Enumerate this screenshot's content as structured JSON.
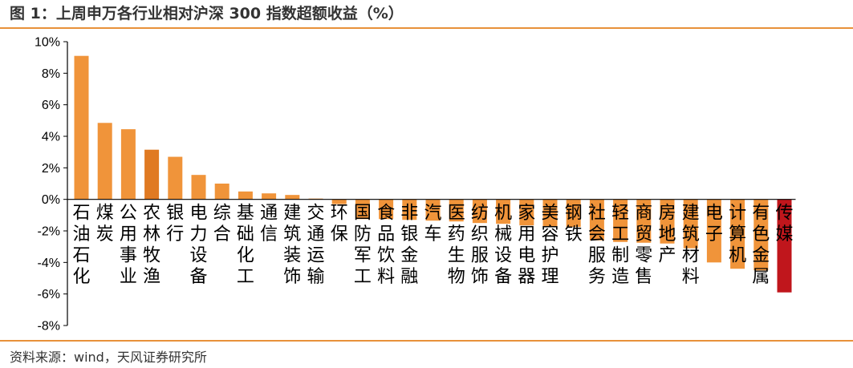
{
  "title": "图 1：上周申万各行业相对沪深 300 指数超额收益（%）",
  "source": "资料来源：wind，天风证券研究所",
  "colors": {
    "bar": "#f0943a",
    "bar_dark": "#e07a22",
    "bar_last": "#c0161c",
    "rule": "#e8913a"
  },
  "chart_data": {
    "type": "bar",
    "title": "",
    "xlabel": "",
    "ylabel": "",
    "ylim": [
      -8,
      10
    ],
    "yticks": [
      "10%",
      "8%",
      "6%",
      "4%",
      "2%",
      "0%",
      "-2%",
      "-4%",
      "-6%",
      "-8%"
    ],
    "ytick_values": [
      10,
      8,
      6,
      4,
      2,
      0,
      -2,
      -4,
      -6,
      -8
    ],
    "categories": [
      "石油石化",
      "煤炭",
      "公用事业",
      "农林牧渔",
      "银行",
      "电力设备",
      "综合",
      "基础化工",
      "通信",
      "建筑装饰",
      "交通运输",
      "环保",
      "国防军工",
      "食品饮料",
      "非银金融",
      "汽车",
      "医药生物",
      "纺织服饰",
      "机械设备",
      "家用电器",
      "美容护理",
      "钢铁",
      "社会服务",
      "轻工制造",
      "商贸零售",
      "房地产",
      "建筑材料",
      "电子",
      "计算机",
      "有色金属",
      "传媒"
    ],
    "values": [
      9.1,
      4.85,
      4.45,
      3.15,
      2.7,
      1.55,
      1.0,
      0.5,
      0.38,
      0.28,
      0.05,
      -0.3,
      -1.25,
      -1.25,
      -1.3,
      -1.35,
      -1.4,
      -1.5,
      -1.55,
      -1.65,
      -1.7,
      -1.75,
      -2.6,
      -2.7,
      -2.75,
      -2.8,
      -3.1,
      -4.0,
      -4.4,
      -4.5,
      -5.9
    ],
    "grid": false,
    "legend": "none"
  }
}
